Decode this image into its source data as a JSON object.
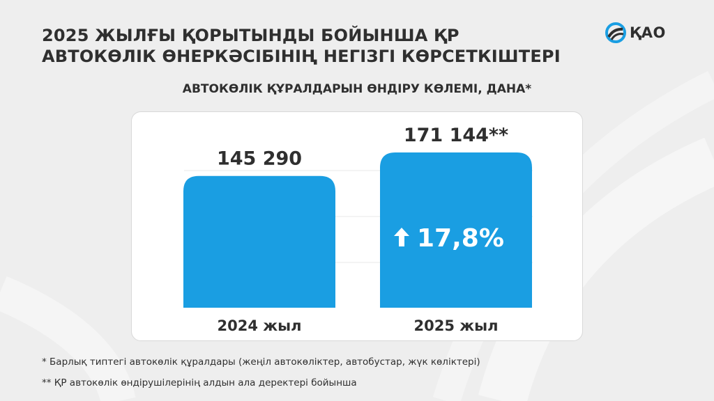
{
  "title_lines": [
    "2025 ЖЫЛҒЫ ҚОРЫТЫНДЫ БОЙЫНША ҚР",
    "АВТОКӨЛІК ӨНЕРКӘСІБІНІҢ НЕГІЗГІ КӨРСЕТКІШТЕРІ"
  ],
  "logo": {
    "text": "ҚАО",
    "icon": "road-circle-logo-icon"
  },
  "colors": {
    "bar": "#1a9ee2",
    "text": "#2f2f2f",
    "background": "#eeeeee",
    "card": "#ffffff"
  },
  "chart_data": {
    "type": "bar",
    "title": "АВТОКӨЛІК ҚҰРАЛДАРЫН ӨНДІРУ КӨЛЕМІ, ДАНА*",
    "categories": [
      "2024 жыл",
      "2025 жыл"
    ],
    "values": [
      145290,
      171144
    ],
    "value_labels": [
      "145 290",
      "171 144**"
    ],
    "annotation": {
      "category": "2025 жыл",
      "text": "17,8%",
      "icon": "arrow-up-icon"
    },
    "grid": true,
    "xlabel": "",
    "ylabel": ""
  },
  "footnotes": [
    "* Барлық типтегі автокөлік құралдары (жеңіл автокөліктер, автобустар, жүк көліктері)",
    "** ҚР автокөлік өндірушілерінің алдын ала деректері бойынша"
  ]
}
